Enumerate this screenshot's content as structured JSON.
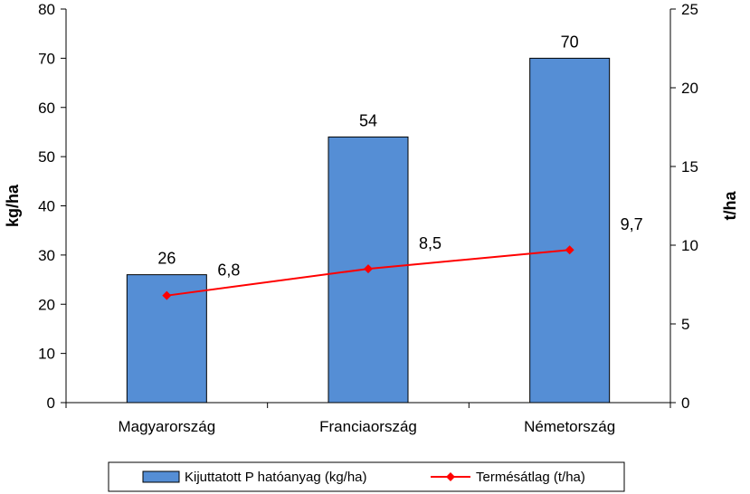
{
  "chart_data": {
    "type": "bar",
    "categories": [
      "Magyarország",
      "Franciaország",
      "Németország"
    ],
    "series": [
      {
        "name": "Kijuttatott P hatóanyag (kg/ha)",
        "type": "bar",
        "axis": "left",
        "values": [
          26,
          54,
          70
        ],
        "labels": [
          "26",
          "54",
          "70"
        ],
        "color": "#558ED5"
      },
      {
        "name": "Termésátlag (t/ha)",
        "type": "line",
        "axis": "right",
        "values": [
          6.8,
          8.5,
          9.7
        ],
        "labels": [
          "6,8",
          "8,5",
          "9,7"
        ],
        "color": "#FF0000"
      }
    ],
    "ylabel": "kg/ha",
    "y2label": "t/ha",
    "ylim": [
      0,
      80
    ],
    "yticks": [
      "0",
      "10",
      "20",
      "30",
      "40",
      "50",
      "60",
      "70",
      "80"
    ],
    "y2lim": [
      0,
      25
    ],
    "y2ticks": [
      "0",
      "5",
      "10",
      "15",
      "20",
      "25"
    ],
    "grid": false,
    "legend_position": "bottom"
  }
}
